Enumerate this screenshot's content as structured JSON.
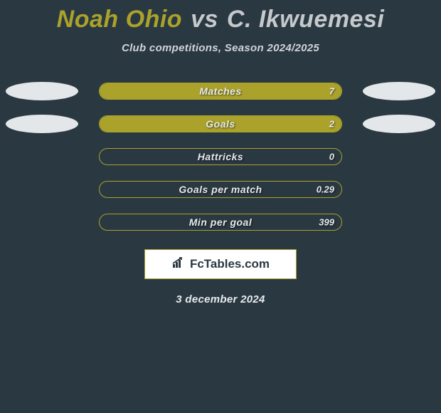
{
  "title": {
    "player1": "Noah Ohio",
    "vs": "vs",
    "player2": "C. Ikwuemesi",
    "p1_color": "#aaa22a",
    "vs_color": "#c5c9cc",
    "p2_color": "#c5c9cc",
    "fontsize": 34
  },
  "subtitle": "Club competitions, Season 2024/2025",
  "subtitle_fontsize": 15,
  "background_color": "#2a3842",
  "accent_color": "#aaa22a",
  "text_color": "#e8eaec",
  "bars": {
    "container_width": 342,
    "container_height": 24,
    "border_radius": 12,
    "border_color": "#aaa22a",
    "fill_color": "#aaa22a",
    "label_fontsize": 14,
    "value_fontsize": 13,
    "rows": [
      {
        "label": "Matches",
        "value": "7",
        "fill_pct": 100,
        "left_ellipse": true,
        "right_ellipse": true
      },
      {
        "label": "Goals",
        "value": "2",
        "fill_pct": 100,
        "left_ellipse": true,
        "right_ellipse": true
      },
      {
        "label": "Hattricks",
        "value": "0",
        "fill_pct": 0,
        "left_ellipse": false,
        "right_ellipse": false
      },
      {
        "label": "Goals per match",
        "value": "0.29",
        "fill_pct": 0,
        "left_ellipse": false,
        "right_ellipse": false
      },
      {
        "label": "Min per goal",
        "value": "399",
        "fill_pct": 0,
        "left_ellipse": false,
        "right_ellipse": false
      }
    ]
  },
  "ellipse": {
    "width": 102,
    "height": 26,
    "color": "#e4e7e9"
  },
  "logo": {
    "icon_glyph": "↗",
    "text": "FcTables.com",
    "box_bg": "#ffffff",
    "box_border": "#aaa22a",
    "text_color": "#2a3842"
  },
  "date": "3 december 2024"
}
